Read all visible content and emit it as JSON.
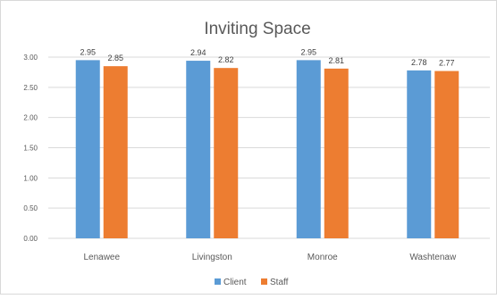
{
  "chart_data": {
    "type": "bar",
    "title": "Inviting Space",
    "categories": [
      "Lenawee",
      "Livingston",
      "Monroe",
      "Washtenaw"
    ],
    "series": [
      {
        "name": "Client",
        "color": "#5b9bd5",
        "values": [
          2.95,
          2.94,
          2.95,
          2.78
        ],
        "labels": [
          "2.95",
          "2.94",
          "2.95",
          "2.78"
        ]
      },
      {
        "name": "Staff",
        "color": "#ed7d31",
        "values": [
          2.85,
          2.82,
          2.81,
          2.77
        ],
        "labels": [
          "2.85",
          "2.82",
          "2.81",
          "2.77"
        ]
      }
    ],
    "ylim": [
      0,
      3.0
    ],
    "yticks": [
      "0.00",
      "0.50",
      "1.00",
      "1.50",
      "2.00",
      "2.50",
      "3.00"
    ],
    "grid": true,
    "legend": "bottom"
  }
}
